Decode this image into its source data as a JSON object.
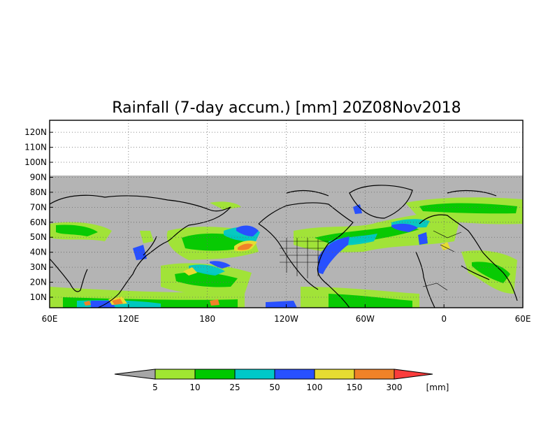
{
  "title": "Rainfall (7-day accum.) [mm] 20Z08Nov2018",
  "map": {
    "lat_labels": [
      "120N",
      "110N",
      "100N",
      "90N",
      "80N",
      "70N",
      "60N",
      "50N",
      "40N",
      "30N",
      "20N",
      "10N"
    ],
    "lon_labels": [
      "60E",
      "120E",
      "180",
      "120W",
      "60W",
      "0",
      "60E"
    ],
    "lon_range": [
      60,
      420
    ],
    "lat_range": [
      3,
      128
    ],
    "no_data_above": "90N",
    "grid": "dotted",
    "colors": {
      "no_data": "#b4b4b4",
      "land": "#aaaaaa",
      "ocean": "#aaaaaa",
      "coast": "#000000"
    }
  },
  "legend": {
    "unit": "[mm]",
    "bins": [
      {
        "label": "5",
        "color": "#a6a6a6"
      },
      {
        "label": "10",
        "color": "#a0e632"
      },
      {
        "label": "25",
        "color": "#00c800"
      },
      {
        "label": "50",
        "color": "#00c8c8"
      },
      {
        "label": "100",
        "color": "#2850ff"
      },
      {
        "label": "150",
        "color": "#e6dc32"
      },
      {
        "label": "300",
        "color": "#f08228"
      },
      {
        "label": "",
        "color": "#fa3c3c"
      }
    ]
  }
}
